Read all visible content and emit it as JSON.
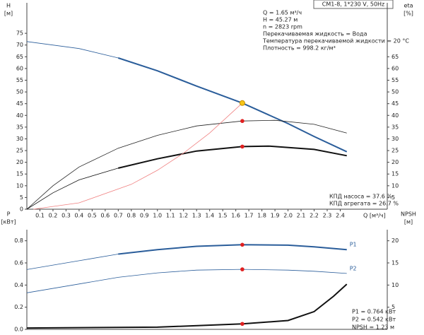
{
  "header": "CM1-8, 1*230 V, 50Hz",
  "notes": [
    "Q = 1.65 м³/ч",
    "H = 45.27 м",
    "n = 2823 rpm",
    "Перекачиваемая жидкость = Вода",
    "Температура перекачиваемой жидкости = 20 °C",
    "Плотность = 998.2 кг/м³"
  ],
  "efficiency_notes": [
    "КПД насоса = 37.6 %",
    "КПД агрегата = 26.7 %"
  ],
  "power_notes": [
    "P1 = 0.764 кВт",
    "P2 = 0.542 кВт",
    "NPSH = 1.23 м"
  ],
  "chart_data": [
    {
      "type": "line",
      "ylabel": [
        "H",
        "[м]"
      ],
      "y2label": [
        "eta",
        "[%]"
      ],
      "xlabel": "Q [м³/ч]",
      "xlim": [
        0,
        2.76
      ],
      "ylim": [
        0,
        88
      ],
      "y2lim": [
        0,
        88
      ],
      "xticks": [
        0.1,
        0.2,
        0.3,
        0.4,
        0.5,
        0.6,
        0.7,
        0.8,
        0.9,
        {
          "value": 1,
          "label": "1.0"
        },
        1.1,
        1.2,
        1.3,
        1.4,
        1.5,
        1.6,
        1.7,
        1.8,
        1.9,
        {
          "value": 2,
          "label": "2.0"
        },
        2.1,
        2.2,
        2.3,
        2.4
      ],
      "yticks": [
        0,
        5,
        10,
        15,
        20,
        25,
        30,
        35,
        40,
        45,
        50,
        55,
        60,
        65,
        70,
        75
      ],
      "y2ticks": [
        5,
        10,
        15,
        20,
        25,
        30,
        35,
        40,
        45,
        50,
        55,
        60,
        65
      ],
      "series": [
        {
          "color": "#2a5d9a",
          "emphasis_from": 0.7,
          "x": [
            0,
            0.4,
            0.7,
            1.0,
            1.3,
            1.65,
            2.0,
            2.2,
            2.45
          ],
          "values": [
            71.5,
            68.5,
            64.5,
            59,
            52.5,
            45.27,
            36.5,
            31,
            24.5
          ]
        },
        {
          "color": "#222222",
          "axis": "y2",
          "x": [
            0,
            0.2,
            0.4,
            0.7,
            1.0,
            1.3,
            1.65,
            1.9,
            2.2,
            2.45
          ],
          "values": [
            0,
            10,
            18,
            26,
            31.5,
            35.5,
            37.6,
            37.9,
            36.2,
            32.5
          ]
        },
        {
          "color": "#111111",
          "axis": "y2",
          "emphasis_from": 0.7,
          "x": [
            0,
            0.2,
            0.4,
            0.7,
            1.0,
            1.3,
            1.65,
            1.85,
            2.2,
            2.45
          ],
          "values": [
            0,
            7,
            12.5,
            17.5,
            21.5,
            24.8,
            26.7,
            26.9,
            25.5,
            22.8
          ]
        },
        {
          "color": "#f08080",
          "x": [
            0.05,
            0.4,
            0.8,
            1.0,
            1.2,
            1.4,
            1.65
          ],
          "values": [
            0,
            2.7,
            10.6,
            16.6,
            23.9,
            32.5,
            45.27
          ]
        }
      ],
      "points": [
        {
          "x": 1.65,
          "y": 45.27,
          "color": "#f5c518"
        },
        {
          "x": 1.65,
          "y": 37.6,
          "color": "#e02020"
        },
        {
          "x": 1.65,
          "y": 26.7,
          "color": "#e02020"
        }
      ]
    },
    {
      "type": "line",
      "ylabel": [
        "P",
        "[кВт]"
      ],
      "y2label": [
        "NPSH",
        "[м]"
      ],
      "xlim": [
        0,
        2.76
      ],
      "ylim": [
        0,
        0.9
      ],
      "y2lim": [
        0,
        22.5
      ],
      "yticks": [
        {
          "value": 0,
          "label": "0.0"
        },
        0.2,
        0.4,
        0.6,
        0.8
      ],
      "y2ticks": [
        5,
        10,
        15,
        20
      ],
      "series": [
        {
          "name": "P1",
          "color": "#2a5d9a",
          "emphasis_from": 0.7,
          "x": [
            0,
            0.4,
            0.7,
            1.0,
            1.3,
            1.65,
            2.0,
            2.2,
            2.45
          ],
          "values": [
            0.54,
            0.62,
            0.68,
            0.72,
            0.75,
            0.764,
            0.76,
            0.745,
            0.72
          ]
        },
        {
          "name": "P2",
          "color": "#2a5d9a",
          "x": [
            0,
            0.4,
            0.7,
            1.0,
            1.3,
            1.65,
            2.0,
            2.2,
            2.45
          ],
          "values": [
            0.33,
            0.41,
            0.47,
            0.51,
            0.535,
            0.542,
            0.535,
            0.525,
            0.505
          ]
        },
        {
          "color": "#111111",
          "axis": "y2",
          "emphasis_from": 0,
          "x": [
            0,
            1.0,
            1.65,
            2.0,
            2.2,
            2.35,
            2.45
          ],
          "values": [
            0.3,
            0.5,
            1.23,
            2,
            4,
            7.5,
            10.2
          ]
        }
      ],
      "points": [
        {
          "x": 1.65,
          "y": 0.764,
          "color": "#e02020"
        },
        {
          "x": 1.65,
          "y": 0.542,
          "color": "#e02020"
        },
        {
          "x": 1.65,
          "y": 1.23,
          "color": "#e02020",
          "axis": "y2"
        }
      ]
    }
  ]
}
